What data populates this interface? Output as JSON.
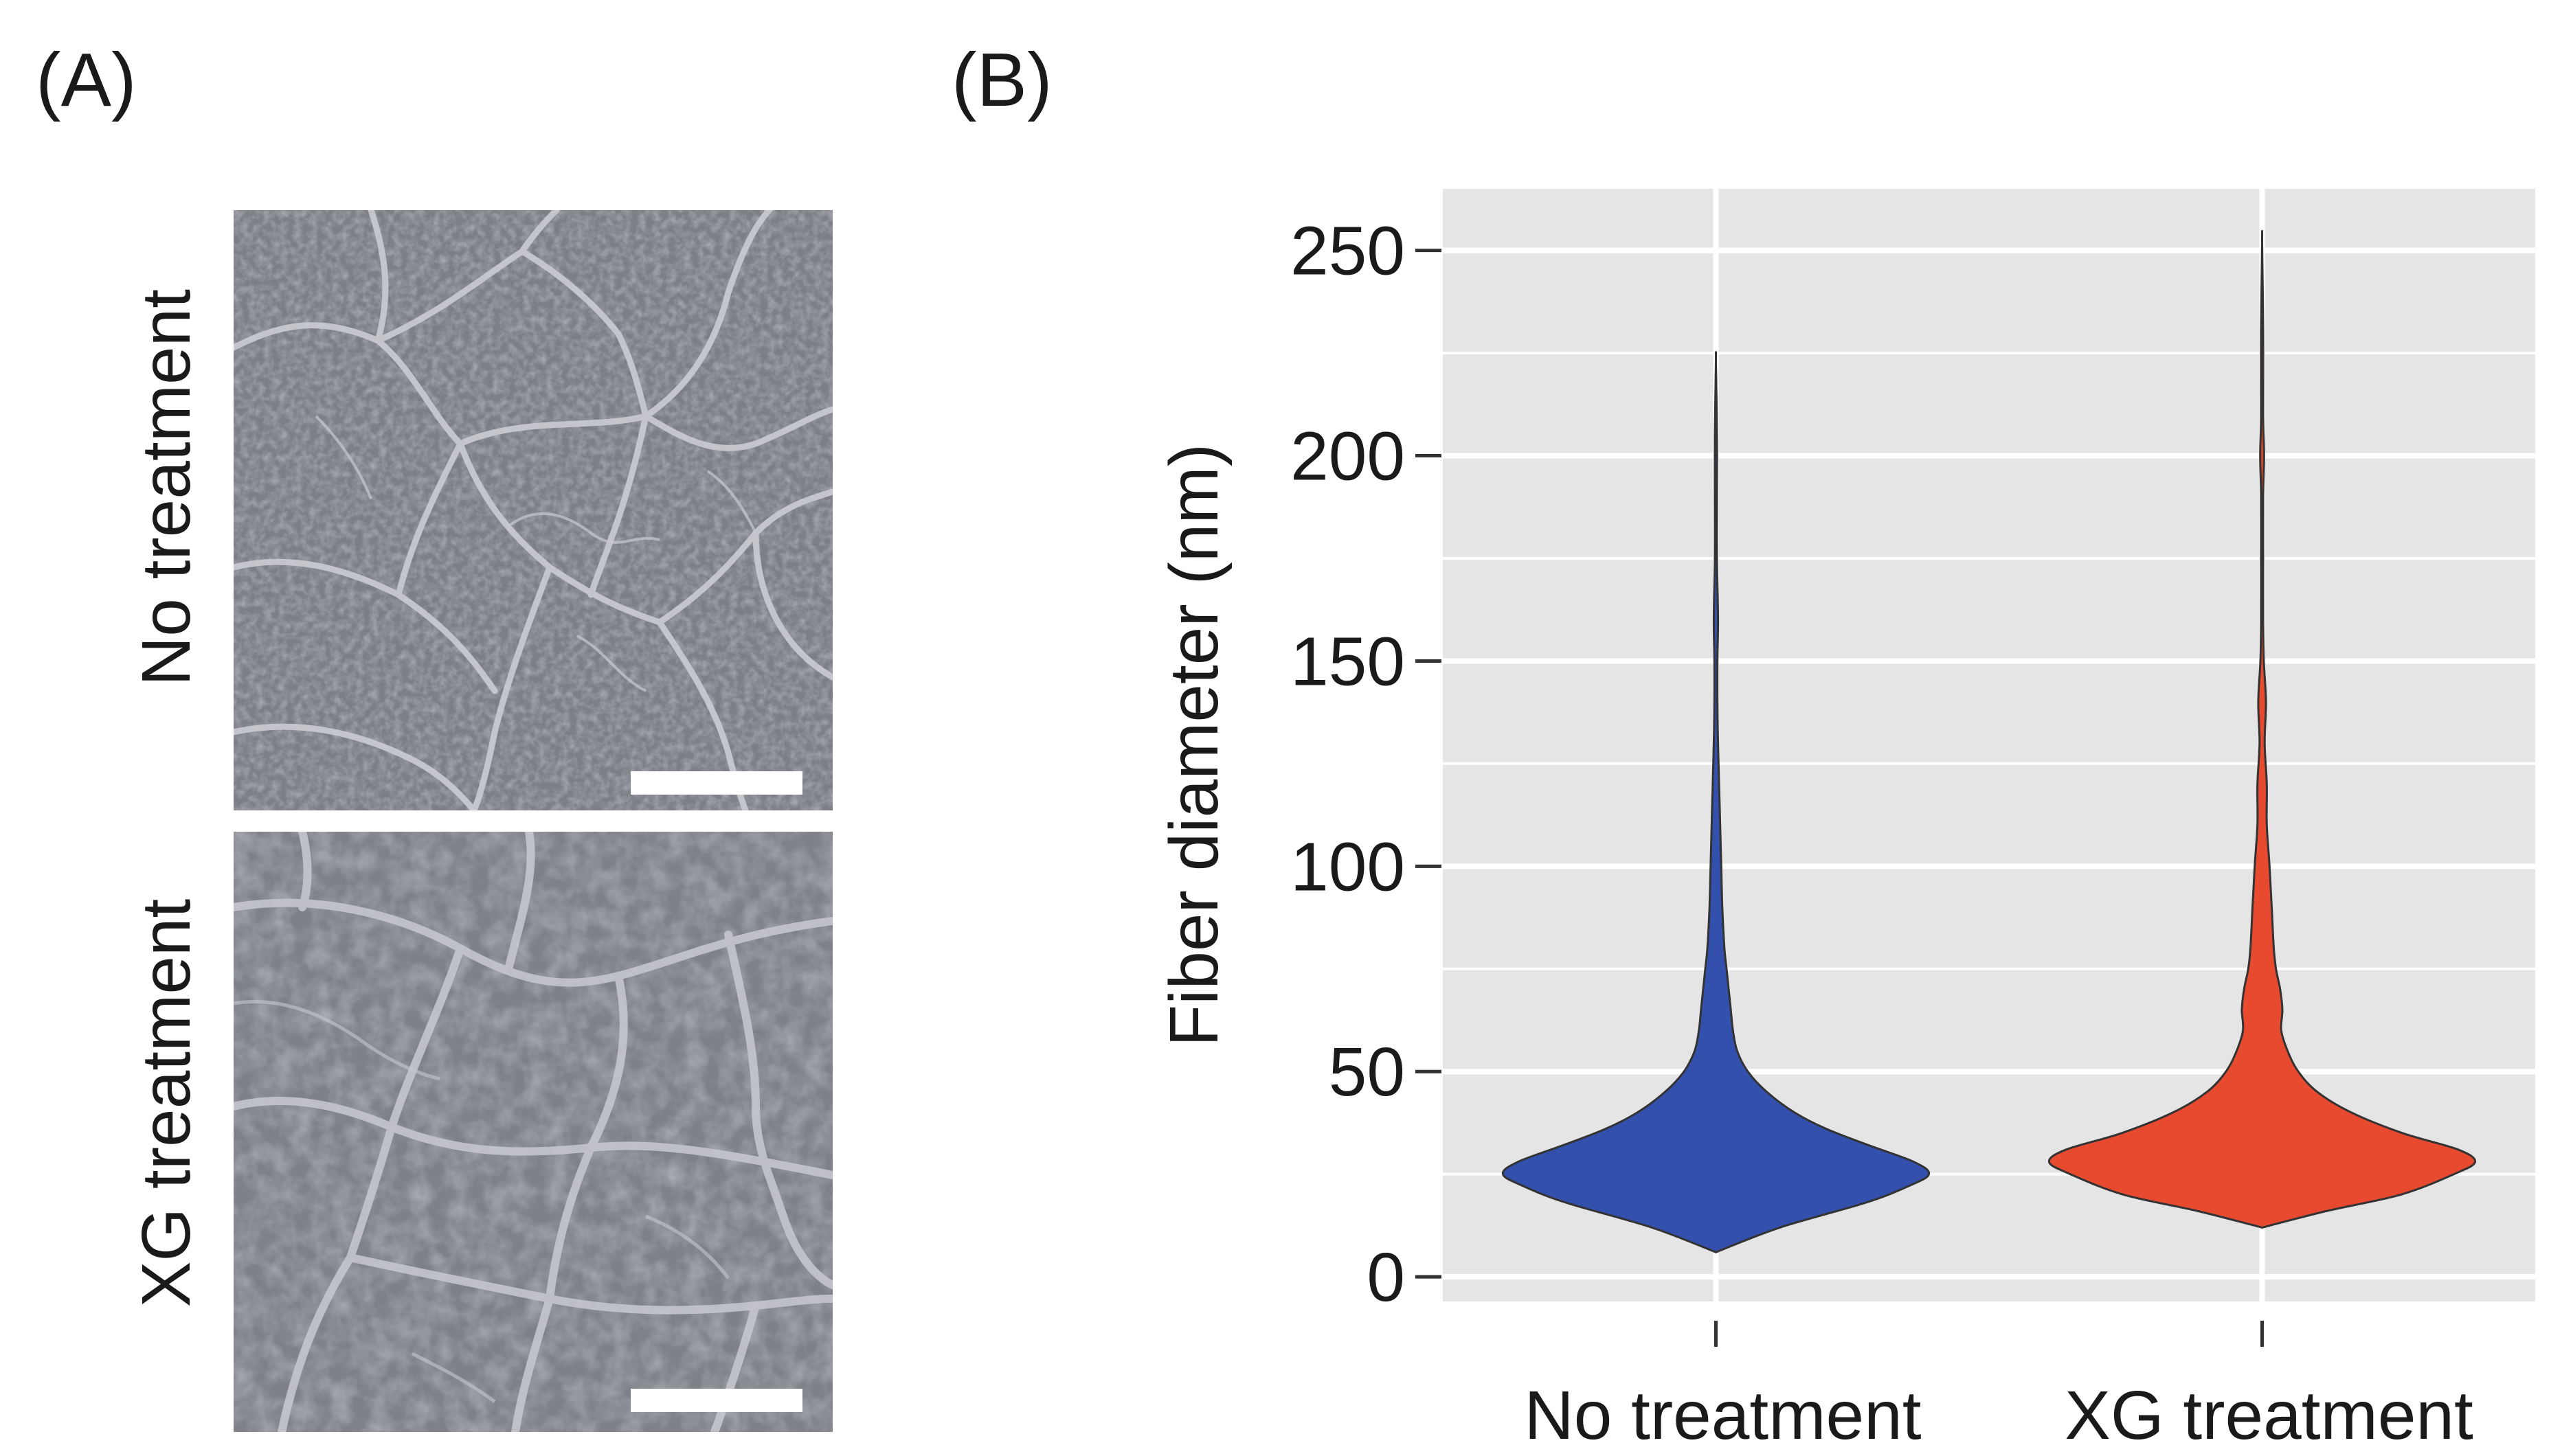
{
  "panels": {
    "a_label": "(A)",
    "b_label": "(B)"
  },
  "panel_a": {
    "rows": [
      {
        "label": "No treatment"
      },
      {
        "label": "XG treatment"
      }
    ]
  },
  "colors": {
    "no_treatment": "#3350ad",
    "xg_treatment": "#e84a2f",
    "panel_bg": "#e5e5e5",
    "grid": "#ffffff",
    "sem_background": "#7d7f87",
    "sem_fiber": "#c9cbd0",
    "scale_bar": "#ffffff"
  },
  "chart_data": {
    "type": "violin",
    "title": "",
    "xlabel": "",
    "ylabel": "Fiber diameter (nm)",
    "ylim": [
      -6,
      265
    ],
    "yticks": [
      0,
      50,
      100,
      150,
      200,
      250
    ],
    "ytick_labels": [
      "0",
      "50",
      "100",
      "150",
      "200",
      "250"
    ],
    "grid": true,
    "legend": "none",
    "categories": [
      "No treatment",
      "XG treatment"
    ],
    "series": [
      {
        "name": "No treatment",
        "min": 6,
        "max": 223,
        "density_profile": [
          [
            6,
            0.0
          ],
          [
            12,
            0.3
          ],
          [
            18,
            0.7
          ],
          [
            22,
            0.9
          ],
          [
            25,
            1.0
          ],
          [
            28,
            0.93
          ],
          [
            32,
            0.72
          ],
          [
            36,
            0.52
          ],
          [
            40,
            0.37
          ],
          [
            45,
            0.24
          ],
          [
            50,
            0.15
          ],
          [
            55,
            0.1
          ],
          [
            60,
            0.08
          ],
          [
            65,
            0.07
          ],
          [
            70,
            0.06
          ],
          [
            75,
            0.05
          ],
          [
            80,
            0.04
          ],
          [
            90,
            0.03
          ],
          [
            100,
            0.025
          ],
          [
            110,
            0.02
          ],
          [
            120,
            0.015
          ],
          [
            135,
            0.008
          ],
          [
            150,
            0.007
          ],
          [
            160,
            0.01
          ],
          [
            175,
            0.005
          ],
          [
            190,
            0.004
          ],
          [
            205,
            0.003
          ],
          [
            223,
            0.0
          ]
        ]
      },
      {
        "name": "XG treatment",
        "min": 12,
        "max": 252,
        "density_profile": [
          [
            12,
            0.0
          ],
          [
            16,
            0.3
          ],
          [
            20,
            0.65
          ],
          [
            25,
            0.9
          ],
          [
            28,
            1.0
          ],
          [
            31,
            0.92
          ],
          [
            35,
            0.66
          ],
          [
            40,
            0.42
          ],
          [
            45,
            0.26
          ],
          [
            50,
            0.17
          ],
          [
            55,
            0.12
          ],
          [
            60,
            0.09
          ],
          [
            65,
            0.095
          ],
          [
            70,
            0.085
          ],
          [
            75,
            0.065
          ],
          [
            80,
            0.055
          ],
          [
            90,
            0.045
          ],
          [
            100,
            0.035
          ],
          [
            110,
            0.022
          ],
          [
            120,
            0.022
          ],
          [
            130,
            0.012
          ],
          [
            140,
            0.018
          ],
          [
            150,
            0.008
          ],
          [
            160,
            0.004
          ],
          [
            175,
            0.003
          ],
          [
            190,
            0.004
          ],
          [
            200,
            0.009
          ],
          [
            210,
            0.002
          ],
          [
            230,
            0.002
          ],
          [
            252,
            0.0
          ]
        ]
      }
    ]
  }
}
